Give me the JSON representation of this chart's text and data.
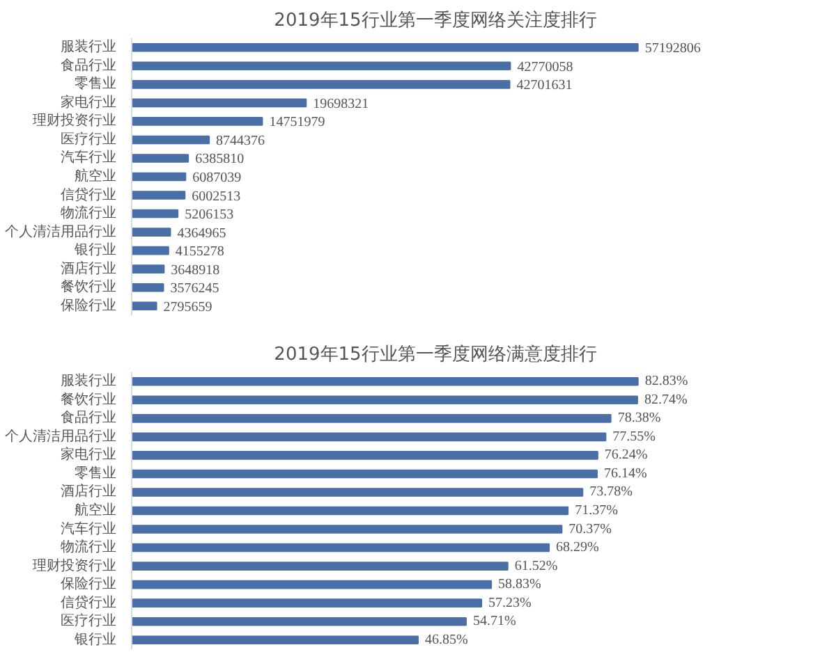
{
  "chart_data": [
    {
      "type": "bar",
      "orientation": "horizontal",
      "title": "2019年15行业第一季度网络关注度排行",
      "categories": [
        "服装行业",
        "食品行业",
        "零售业",
        "家电行业",
        "理财投资行业",
        "医疗行业",
        "汽车行业",
        "航空业",
        "信贷行业",
        "物流行业",
        "个人清洁用品行业",
        "银行业",
        "酒店行业",
        "餐饮行业",
        "保险行业"
      ],
      "values": [
        57192806,
        42770058,
        42701631,
        19698321,
        14751979,
        8744376,
        6385810,
        6087039,
        6002513,
        5206153,
        4364965,
        4155278,
        3648918,
        3576245,
        2795659
      ],
      "color": "#4a6ea6",
      "data_labels": true
    },
    {
      "type": "bar",
      "orientation": "horizontal",
      "title": "2019年15行业第一季度网络满意度排行",
      "categories": [
        "服装行业",
        "餐饮行业",
        "食品行业",
        "个人清洁用品行业",
        "家电行业",
        "零售业",
        "酒店行业",
        "航空业",
        "汽车行业",
        "物流行业",
        "理财投资行业",
        "保险行业",
        "信贷行业",
        "医疗行业",
        "银行业"
      ],
      "values": [
        82.83,
        82.74,
        78.38,
        77.55,
        76.24,
        76.14,
        73.78,
        71.37,
        70.37,
        68.29,
        61.52,
        58.83,
        57.23,
        54.71,
        46.85
      ],
      "value_labels": [
        "82.83%",
        "82.74%",
        "78.38%",
        "77.55%",
        "76.24%",
        "76.14%",
        "73.78%",
        "71.37%",
        "70.37%",
        "68.29%",
        "61.52%",
        "58.83%",
        "57.23%",
        "54.71%",
        "46.85%"
      ],
      "color": "#4a6ea6"
    }
  ]
}
